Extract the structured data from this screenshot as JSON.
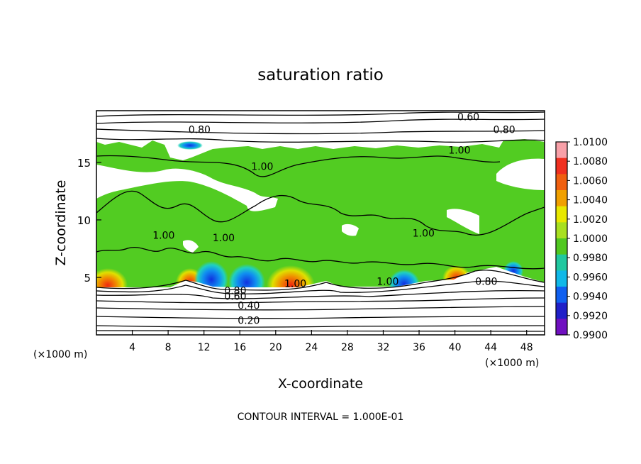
{
  "chart_data": {
    "type": "heatmap",
    "title": "saturation ratio",
    "xlabel": "X-coordinate",
    "ylabel": "Z-coordinate",
    "x_unit_left": "(×1000 m)",
    "x_unit_right": "(×1000 m)",
    "footer": "CONTOUR INTERVAL = 1.000E-01",
    "xlim": [
      0,
      50
    ],
    "ylim": [
      0,
      19.5
    ],
    "x_ticks": [
      4,
      8,
      12,
      16,
      20,
      24,
      28,
      32,
      36,
      40,
      44,
      48
    ],
    "y_ticks": [
      5,
      10,
      15
    ],
    "colorbar": {
      "ticks": [
        "1.0100",
        "1.0080",
        "1.0060",
        "1.0040",
        "1.0020",
        "1.0000",
        "0.9980",
        "0.9960",
        "0.9940",
        "0.9920",
        "0.9900"
      ],
      "colors": [
        "#f8a0a8",
        "#f03020",
        "#f06010",
        "#f0a000",
        "#e8e800",
        "#a8e020",
        "#50c820",
        "#20c8a0",
        "#10b8e8",
        "#1060f0",
        "#2020c8",
        "#7010c0"
      ]
    },
    "field_colors": {
      "moist_layer": "#52cc22",
      "dry_region": "#ffffff",
      "warm_spot": "#f04010",
      "cool_spot": "#1878f0"
    },
    "moist_layer": {
      "bottom_z": 4.8,
      "top_z": 17.0
    },
    "contour_labels": [
      {
        "text": "0.60",
        "x": 41.5,
        "z": 18.9
      },
      {
        "text": "0.80",
        "x": 11.5,
        "z": 17.8
      },
      {
        "text": "0.80",
        "x": 45.5,
        "z": 17.8
      },
      {
        "text": "1.00",
        "x": 40.5,
        "z": 16.0
      },
      {
        "text": "1.00",
        "x": 18.5,
        "z": 14.6
      },
      {
        "text": "1.00",
        "x": 36.5,
        "z": 8.8
      },
      {
        "text": "1.00",
        "x": 7.5,
        "z": 8.6
      },
      {
        "text": "1.00",
        "x": 14.2,
        "z": 8.4
      },
      {
        "text": "1.00",
        "x": 22.2,
        "z": 4.4
      },
      {
        "text": "1.00",
        "x": 32.5,
        "z": 4.6
      },
      {
        "text": "0.80",
        "x": 43.5,
        "z": 4.6
      },
      {
        "text": "0.80",
        "x": 15.5,
        "z": 3.8
      },
      {
        "text": "0.60",
        "x": 15.5,
        "z": 3.3
      },
      {
        "text": "0.40",
        "x": 17.0,
        "z": 2.5
      },
      {
        "text": "0.20",
        "x": 17.0,
        "z": 1.2
      }
    ]
  }
}
